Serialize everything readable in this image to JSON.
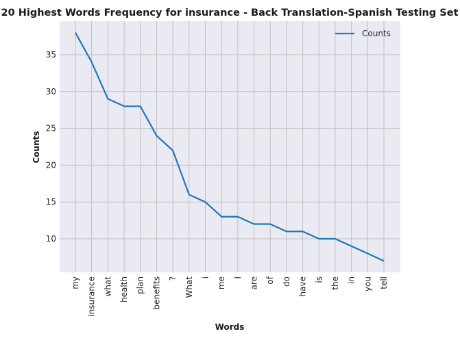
{
  "chart_data": {
    "type": "line",
    "title": "20 Highest Words Frequency for insurance - Back Translation-Spanish Testing Set",
    "xlabel": "Words",
    "ylabel": "Counts",
    "categories": [
      "my",
      "insurance",
      "what",
      "health",
      "plan",
      "benefits",
      "?",
      "What",
      "i",
      "me",
      "I",
      "are",
      "of",
      "do",
      "have",
      "is",
      "the",
      "in",
      "you",
      "tell"
    ],
    "series": [
      {
        "name": "Counts",
        "values": [
          38,
          34,
          29,
          28,
          28,
          24,
          22,
          16,
          15,
          13,
          13,
          12,
          12,
          11,
          11,
          10,
          10,
          9,
          8,
          7
        ]
      }
    ],
    "yticks": [
      10,
      15,
      20,
      25,
      30,
      35
    ],
    "ylim": [
      5.45,
      39.55
    ],
    "grid": true,
    "legend_position": "top-right",
    "colors": {
      "line": "#1f77b4",
      "plot_background": "#eaeaf2",
      "grid": "#c0c0c0"
    }
  }
}
